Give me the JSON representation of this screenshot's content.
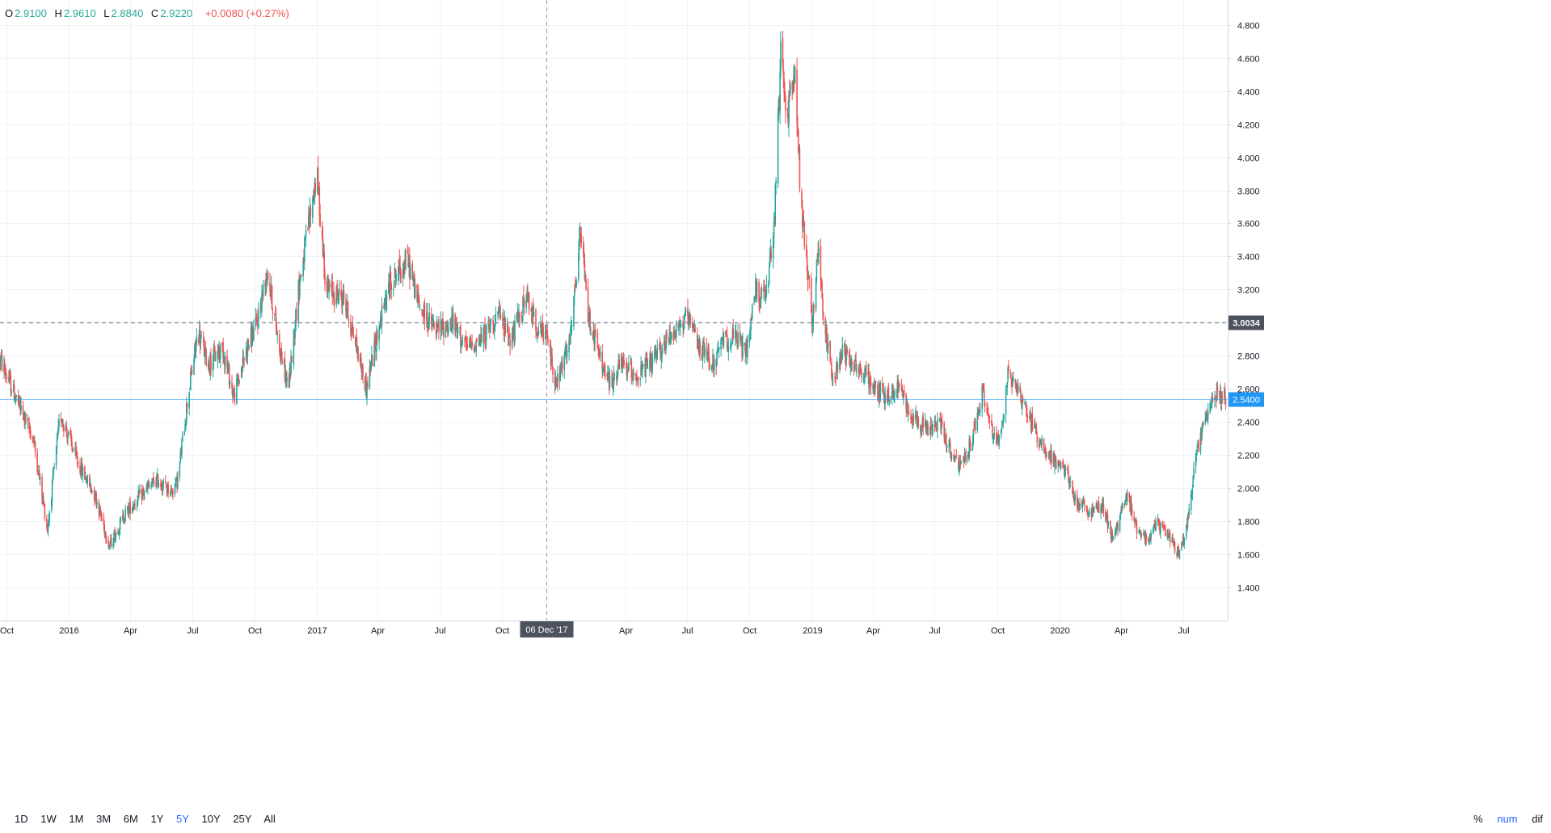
{
  "legend": {
    "o_label": "O",
    "o_value": "2.9100",
    "h_label": "H",
    "h_value": "2.9610",
    "l_label": "L",
    "l_value": "2.8840",
    "c_label": "C",
    "c_value": "2.9220",
    "change": "+0.0080 (+0.27%)"
  },
  "crosshair": {
    "date_label": "06 Dec '17",
    "price_label": "3.0034",
    "price": 3.0034
  },
  "last_price": {
    "label": "2.5400",
    "value": 2.54
  },
  "ranges": [
    "1D",
    "1W",
    "1M",
    "3M",
    "6M",
    "1Y",
    "5Y",
    "10Y",
    "25Y",
    "All"
  ],
  "active_range": "5Y",
  "scale_options": [
    "%",
    "num",
    "dif"
  ],
  "active_scale": "num",
  "colors": {
    "up": "#26a69a",
    "down": "#ef5350",
    "grid": "#f0f3fa",
    "crosshair": "#9598a1",
    "last_price": "#2196f3",
    "label_dark": "#4c525e"
  },
  "chart_data": {
    "type": "candlestick",
    "y_axis": {
      "range": [
        1.2,
        4.95
      ],
      "ticks": [
        "1.400",
        "1.600",
        "1.800",
        "2.000",
        "2.200",
        "2.400",
        "2.600",
        "2.800",
        "3.000",
        "3.200",
        "3.400",
        "3.600",
        "3.800",
        "4.000",
        "4.200",
        "4.400",
        "4.600",
        "4.800"
      ]
    },
    "x_axis": {
      "range": [
        "2015-09-22",
        "2020-09-05"
      ],
      "ticks": [
        {
          "label": "Oct",
          "date": "2015-10-01"
        },
        {
          "label": "2016",
          "date": "2016-01-01"
        },
        {
          "label": "Apr",
          "date": "2016-04-01"
        },
        {
          "label": "Jul",
          "date": "2016-07-01"
        },
        {
          "label": "Oct",
          "date": "2016-10-01"
        },
        {
          "label": "2017",
          "date": "2017-01-01"
        },
        {
          "label": "Apr",
          "date": "2017-04-01"
        },
        {
          "label": "Jul",
          "date": "2017-07-01"
        },
        {
          "label": "Oct",
          "date": "2017-10-01"
        },
        {
          "label": "Apr",
          "date": "2018-04-01"
        },
        {
          "label": "Jul",
          "date": "2018-07-01"
        },
        {
          "label": "Oct",
          "date": "2018-10-01"
        },
        {
          "label": "2019",
          "date": "2019-01-01"
        },
        {
          "label": "Apr",
          "date": "2019-04-01"
        },
        {
          "label": "Jul",
          "date": "2019-07-01"
        },
        {
          "label": "Oct",
          "date": "2019-10-01"
        },
        {
          "label": "2020",
          "date": "2020-01-01"
        },
        {
          "label": "Apr",
          "date": "2020-04-01"
        },
        {
          "label": "Jul",
          "date": "2020-07-01"
        }
      ]
    },
    "price_path": [
      [
        "2015-09-22",
        2.78
      ],
      [
        "2015-10-15",
        2.55
      ],
      [
        "2015-11-10",
        2.3
      ],
      [
        "2015-12-01",
        1.75
      ],
      [
        "2015-12-20",
        2.45
      ],
      [
        "2016-01-15",
        2.15
      ],
      [
        "2016-02-10",
        1.95
      ],
      [
        "2016-03-01",
        1.65
      ],
      [
        "2016-03-25",
        1.85
      ],
      [
        "2016-04-15",
        1.95
      ],
      [
        "2016-05-10",
        2.05
      ],
      [
        "2016-06-01",
        1.98
      ],
      [
        "2016-06-10",
        2.05
      ],
      [
        "2016-06-25",
        2.55
      ],
      [
        "2016-07-10",
        2.95
      ],
      [
        "2016-07-25",
        2.75
      ],
      [
        "2016-08-15",
        2.85
      ],
      [
        "2016-09-01",
        2.55
      ],
      [
        "2016-09-20",
        2.85
      ],
      [
        "2016-10-05",
        3.0
      ],
      [
        "2016-10-20",
        3.32
      ],
      [
        "2016-11-05",
        2.9
      ],
      [
        "2016-11-20",
        2.6
      ],
      [
        "2016-12-05",
        3.2
      ],
      [
        "2016-12-20",
        3.6
      ],
      [
        "2017-01-01",
        3.9
      ],
      [
        "2017-01-15",
        3.2
      ],
      [
        "2017-02-10",
        3.15
      ],
      [
        "2017-03-01",
        2.85
      ],
      [
        "2017-03-15",
        2.6
      ],
      [
        "2017-04-01",
        2.95
      ],
      [
        "2017-04-20",
        3.25
      ],
      [
        "2017-05-15",
        3.38
      ],
      [
        "2017-06-01",
        3.1
      ],
      [
        "2017-06-25",
        2.95
      ],
      [
        "2017-07-20",
        3.0
      ],
      [
        "2017-08-10",
        2.85
      ],
      [
        "2017-09-01",
        2.9
      ],
      [
        "2017-09-25",
        3.05
      ],
      [
        "2017-10-15",
        2.9
      ],
      [
        "2017-11-05",
        3.15
      ],
      [
        "2017-11-25",
        2.95
      ],
      [
        "2017-12-06",
        2.92
      ],
      [
        "2017-12-20",
        2.62
      ],
      [
        "2018-01-10",
        2.9
      ],
      [
        "2018-01-25",
        3.55
      ],
      [
        "2018-02-05",
        3.05
      ],
      [
        "2018-02-25",
        2.75
      ],
      [
        "2018-03-10",
        2.62
      ],
      [
        "2018-03-25",
        2.75
      ],
      [
        "2018-04-20",
        2.68
      ],
      [
        "2018-05-15",
        2.78
      ],
      [
        "2018-06-10",
        2.95
      ],
      [
        "2018-07-01",
        3.02
      ],
      [
        "2018-07-20",
        2.85
      ],
      [
        "2018-08-10",
        2.75
      ],
      [
        "2018-08-25",
        2.9
      ],
      [
        "2018-09-15",
        2.9
      ],
      [
        "2018-09-25",
        2.8
      ],
      [
        "2018-10-10",
        3.2
      ],
      [
        "2018-10-25",
        3.15
      ],
      [
        "2018-11-06",
        3.55
      ],
      [
        "2018-11-16",
        4.6
      ],
      [
        "2018-11-26",
        4.25
      ],
      [
        "2018-12-06",
        4.55
      ],
      [
        "2018-12-16",
        3.7
      ],
      [
        "2018-12-24",
        3.4
      ],
      [
        "2019-01-01",
        3.0
      ],
      [
        "2019-01-10",
        3.45
      ],
      [
        "2019-01-20",
        2.95
      ],
      [
        "2019-02-01",
        2.65
      ],
      [
        "2019-02-15",
        2.85
      ],
      [
        "2019-03-05",
        2.75
      ],
      [
        "2019-03-20",
        2.68
      ],
      [
        "2019-04-05",
        2.6
      ],
      [
        "2019-04-25",
        2.55
      ],
      [
        "2019-05-10",
        2.62
      ],
      [
        "2019-05-25",
        2.45
      ],
      [
        "2019-06-10",
        2.4
      ],
      [
        "2019-06-25",
        2.35
      ],
      [
        "2019-07-10",
        2.4
      ],
      [
        "2019-07-25",
        2.2
      ],
      [
        "2019-08-10",
        2.12
      ],
      [
        "2019-08-25",
        2.3
      ],
      [
        "2019-09-10",
        2.58
      ],
      [
        "2019-09-25",
        2.3
      ],
      [
        "2019-10-05",
        2.3
      ],
      [
        "2019-10-18",
        2.7
      ],
      [
        "2019-11-01",
        2.6
      ],
      [
        "2019-11-15",
        2.45
      ],
      [
        "2019-12-01",
        2.3
      ],
      [
        "2019-12-20",
        2.18
      ],
      [
        "2020-01-10",
        2.1
      ],
      [
        "2020-01-25",
        1.92
      ],
      [
        "2020-02-15",
        1.85
      ],
      [
        "2020-03-05",
        1.9
      ],
      [
        "2020-03-20",
        1.68
      ],
      [
        "2020-04-01",
        1.85
      ],
      [
        "2020-04-10",
        1.95
      ],
      [
        "2020-04-25",
        1.75
      ],
      [
        "2020-05-10",
        1.7
      ],
      [
        "2020-05-25",
        1.78
      ],
      [
        "2020-06-10",
        1.72
      ],
      [
        "2020-06-25",
        1.6
      ],
      [
        "2020-07-05",
        1.72
      ],
      [
        "2020-07-20",
        2.2
      ],
      [
        "2020-08-05",
        2.45
      ],
      [
        "2020-08-20",
        2.58
      ],
      [
        "2020-09-02",
        2.54
      ]
    ]
  }
}
